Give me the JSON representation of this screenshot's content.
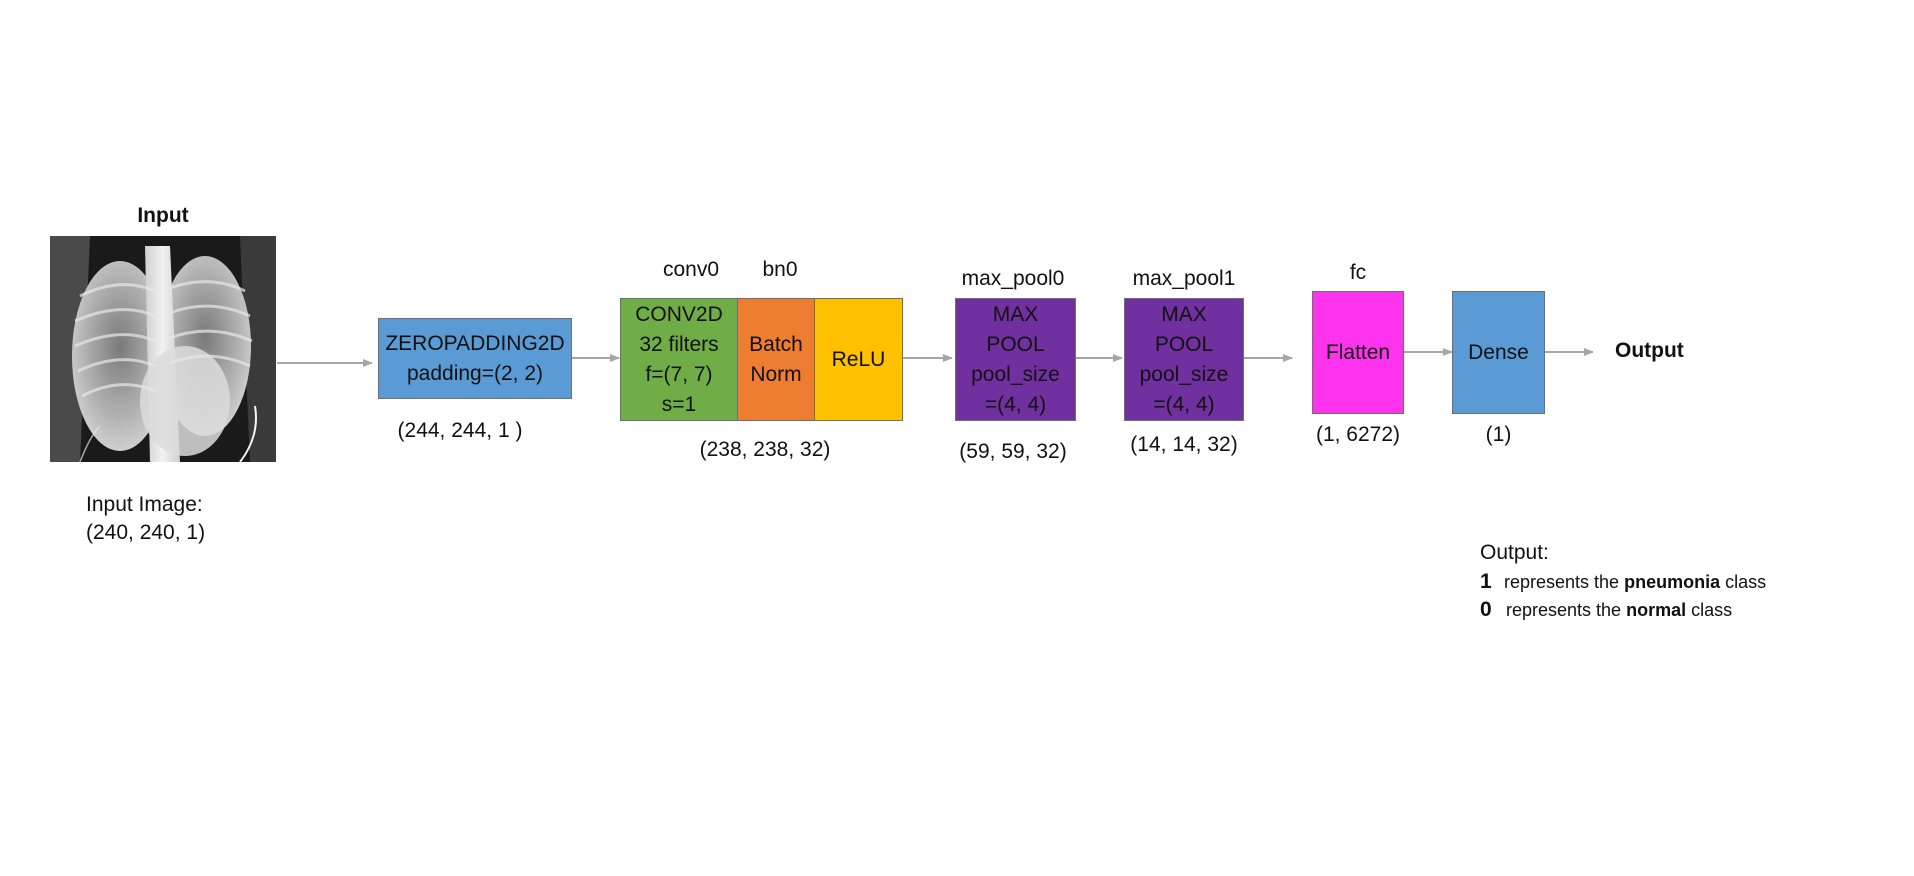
{
  "input": {
    "title": "Input",
    "caption_line1": "Input Image:",
    "caption_line2": "(240, 240, 1)"
  },
  "zeropad": {
    "line1": "ZEROPADDING2D",
    "line2": "padding=(2, 2)",
    "shape": "(244, 244, 1 )"
  },
  "conv": {
    "label": "conv0",
    "line1": "CONV2D",
    "line2": "32 filters",
    "line3": "f=(7, 7)",
    "line4": "s=1"
  },
  "bn": {
    "label": "bn0",
    "line1": "Batch",
    "line2": "Norm"
  },
  "relu": {
    "line1": "ReLU"
  },
  "conv_group_shape": "(238, 238, 32)",
  "maxpool0": {
    "label": "max_pool0",
    "line1": "MAX",
    "line2": "POOL",
    "line3": "pool_size",
    "line4": "=(4, 4)",
    "shape": "(59, 59, 32)"
  },
  "maxpool1": {
    "label": "max_pool1",
    "line1": "MAX",
    "line2": "POOL",
    "line3": "pool_size",
    "line4": "=(4, 4)",
    "shape": "(14, 14, 32)"
  },
  "flatten": {
    "label": "fc",
    "line1": "Flatten",
    "shape": "(1, 6272)"
  },
  "dense": {
    "line1": "Dense",
    "shape": "(1)"
  },
  "output": {
    "label": "Output"
  },
  "legend": {
    "title": "Output:",
    "row1_num": "1",
    "row1_pre": "represents the",
    "row1_bold": "pneumonia",
    "row1_post": "class",
    "row0_num": "0",
    "row0_pre": "represents the",
    "row0_bold": "normal",
    "row0_post": "class"
  },
  "colors": {
    "zeropad": "#5b9bd5",
    "conv": "#70ad47",
    "bn": "#ed7d31",
    "relu": "#ffc000",
    "maxpool": "#7030a0",
    "flatten": "#ff33ee",
    "dense": "#5b9bd5",
    "arrow": "#a6a6a6"
  }
}
